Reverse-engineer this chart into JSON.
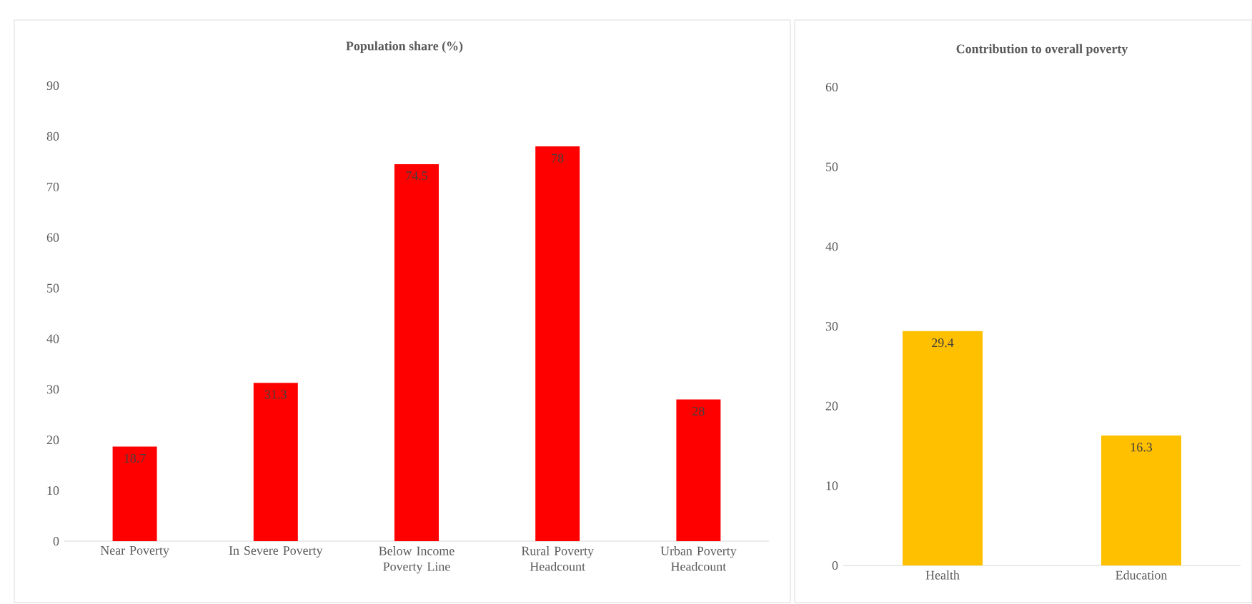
{
  "chart_data": [
    {
      "type": "bar",
      "title": "Population share (%)",
      "categories": [
        "Near Poverty",
        "In Severe Poverty",
        "Below Income Poverty Line",
        "Rural Poverty Headcount",
        "Urban Poverty Headcount"
      ],
      "values": [
        18.7,
        31.3,
        74.5,
        78,
        28
      ],
      "color": "#ff0000",
      "ylim": [
        0,
        90
      ],
      "yticks": [
        0,
        10,
        20,
        30,
        40,
        50,
        60,
        70,
        80,
        90
      ],
      "data_labels": true
    },
    {
      "type": "bar",
      "title": "Contribution to overall poverty",
      "categories": [
        "Health",
        "Education"
      ],
      "values": [
        29.4,
        16.3
      ],
      "color": "#ffc000",
      "ylim": [
        0,
        60
      ],
      "yticks": [
        0,
        10,
        20,
        30,
        40,
        50,
        60
      ],
      "data_labels": true
    }
  ]
}
